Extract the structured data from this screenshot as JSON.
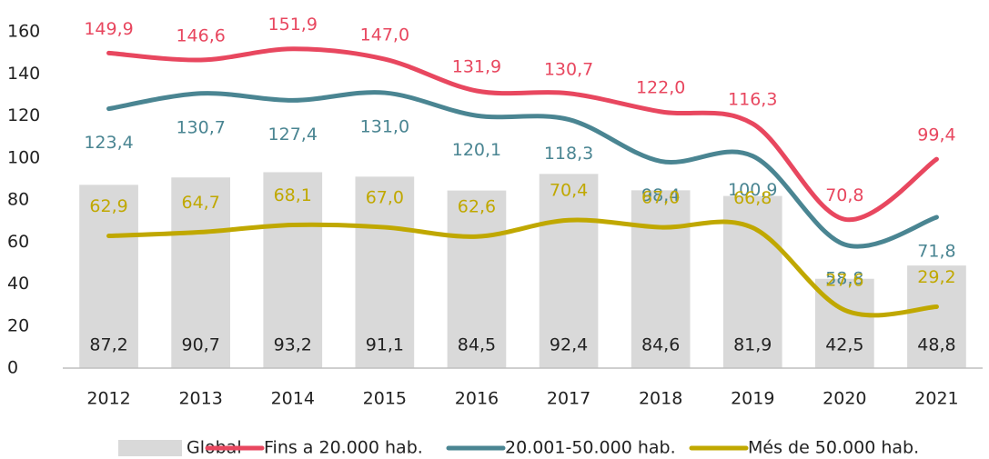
{
  "chart_data": {
    "type": "bar_line",
    "categories": [
      "2012",
      "2013",
      "2014",
      "2015",
      "2016",
      "2017",
      "2018",
      "2019",
      "2020",
      "2021"
    ],
    "bars": {
      "name": "Global",
      "color": "#d9d9d9",
      "values": [
        87.2,
        90.7,
        93.2,
        91.1,
        84.5,
        92.4,
        84.6,
        81.9,
        42.5,
        48.8
      ],
      "value_labels": [
        "87,2",
        "90,7",
        "93,2",
        "91,1",
        "84,5",
        "92,4",
        "84,6",
        "81,9",
        "42,5",
        "48,8"
      ]
    },
    "series": [
      {
        "name": "Fins a 20.000 hab.",
        "color": "#e8475f",
        "values": [
          149.9,
          146.6,
          151.9,
          147.0,
          131.9,
          130.7,
          122.0,
          116.3,
          70.8,
          99.4
        ],
        "value_labels": [
          "149,9",
          "146,6",
          "151,9",
          "147,0",
          "131,9",
          "130,7",
          "122,0",
          "116,3",
          "70,8",
          "99,4"
        ]
      },
      {
        "name": "20.001-50.000 hab.",
        "color": "#4a8592",
        "values": [
          123.4,
          130.7,
          127.4,
          131.0,
          120.1,
          118.3,
          98.4,
          100.9,
          58.8,
          71.8
        ],
        "value_labels": [
          "123,4",
          "130,7",
          "127,4",
          "131,0",
          "120,1",
          "118,3",
          "98,4",
          "100,9",
          "58,8",
          "71,8"
        ]
      },
      {
        "name": "Més de 50.000 hab.",
        "color": "#c0a800",
        "values": [
          62.9,
          64.7,
          68.1,
          67.0,
          62.6,
          70.4,
          67.0,
          66.8,
          27.6,
          29.2
        ],
        "value_labels": [
          "62,9",
          "64,7",
          "68,1",
          "67,0",
          "62,6",
          "70,4",
          "67,0",
          "66,8",
          "27,6",
          "29,2"
        ]
      }
    ],
    "ylim": [
      0,
      160
    ],
    "yticks": [
      0,
      20,
      40,
      60,
      80,
      100,
      120,
      140,
      160
    ],
    "grid": false,
    "legend": "bottom"
  }
}
